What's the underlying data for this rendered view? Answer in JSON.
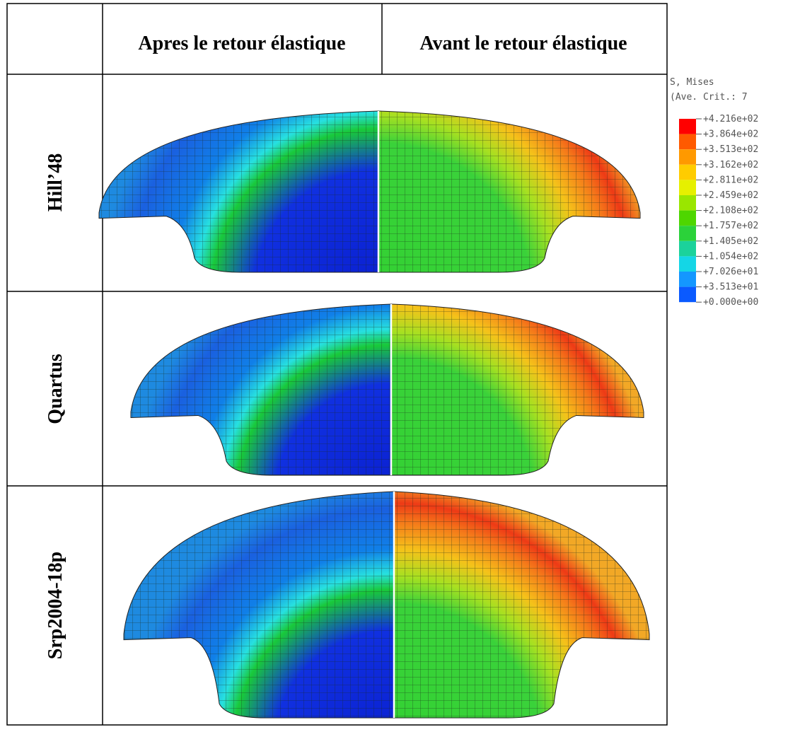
{
  "table": {
    "header": [
      "Apres le retour élastique",
      "Avant le retour élastique"
    ],
    "rows": [
      "Hill’48",
      "Quartus",
      "Srp2004-18p"
    ]
  },
  "legend": {
    "title": "S, Mises",
    "subtitle": "(Ave. Crit.: 7",
    "labels": [
      "+4.216e+02",
      "+3.864e+02",
      "+3.513e+02",
      "+3.162e+02",
      "+2.811e+02",
      "+2.459e+02",
      "+2.108e+02",
      "+1.757e+02",
      "+1.405e+02",
      "+1.054e+02",
      "+7.026e+01",
      "+3.513e+01",
      "+0.000e+00"
    ]
  }
}
